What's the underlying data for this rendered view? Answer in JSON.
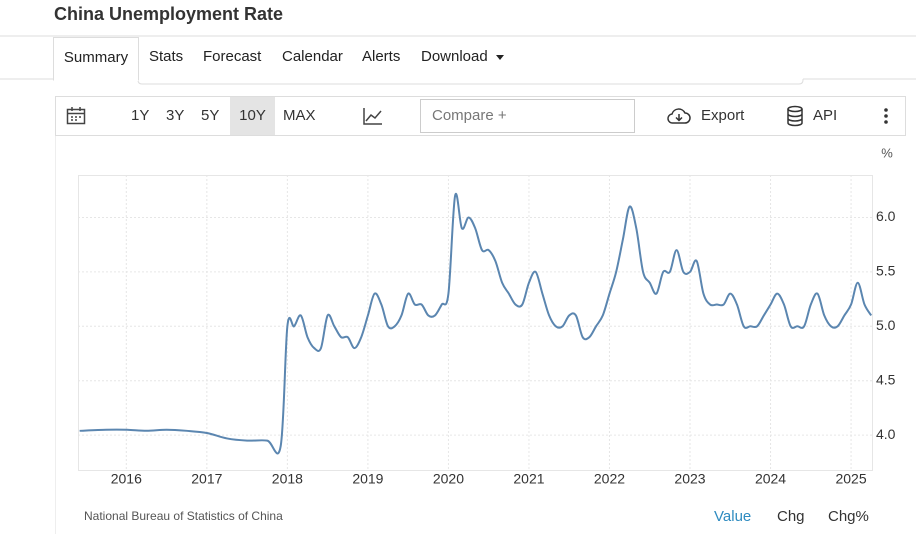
{
  "header": {
    "title": "China Unemployment Rate"
  },
  "tabs": [
    "Summary",
    "Stats",
    "Forecast",
    "Calendar",
    "Alerts",
    "Download"
  ],
  "toolbar": {
    "ranges": [
      "1Y",
      "3Y",
      "5Y",
      "10Y",
      "MAX"
    ],
    "compare": "Compare +",
    "export": "Export",
    "api": "API"
  },
  "chart_data": {
    "type": "line",
    "unit": "%",
    "color": "#5b86b0",
    "grid": true,
    "x": [
      2015.42,
      2015.75,
      2016.0,
      2016.25,
      2016.5,
      2016.75,
      2017.0,
      2017.25,
      2017.5,
      2017.75,
      2017.917,
      2018,
      2018.083,
      2018.167,
      2018.25,
      2018.333,
      2018.417,
      2018.5,
      2018.583,
      2018.667,
      2018.75,
      2018.833,
      2018.917,
      2019,
      2019.083,
      2019.167,
      2019.25,
      2019.333,
      2019.417,
      2019.5,
      2019.583,
      2019.667,
      2019.75,
      2019.833,
      2019.917,
      2020,
      2020.083,
      2020.167,
      2020.25,
      2020.333,
      2020.417,
      2020.5,
      2020.583,
      2020.667,
      2020.75,
      2020.833,
      2020.917,
      2021,
      2021.083,
      2021.167,
      2021.25,
      2021.333,
      2021.417,
      2021.5,
      2021.583,
      2021.667,
      2021.75,
      2021.833,
      2021.917,
      2022,
      2022.083,
      2022.167,
      2022.25,
      2022.333,
      2022.417,
      2022.5,
      2022.583,
      2022.667,
      2022.75,
      2022.833,
      2022.917,
      2023,
      2023.083,
      2023.167,
      2023.25,
      2023.333,
      2023.417,
      2023.5,
      2023.583,
      2023.667,
      2023.75,
      2023.833,
      2023.917,
      2024,
      2024.083,
      2024.167,
      2024.25,
      2024.333,
      2024.417,
      2024.5,
      2024.583,
      2024.667,
      2024.75,
      2024.833,
      2024.917,
      2025,
      2025.083,
      2025.167,
      2025.25
    ],
    "values": [
      4.04,
      4.05,
      4.05,
      4.04,
      4.05,
      4.04,
      4.02,
      3.97,
      3.95,
      3.95,
      3.9,
      5.0,
      5.0,
      5.1,
      4.9,
      4.8,
      4.8,
      5.1,
      5.0,
      4.9,
      4.9,
      4.8,
      4.9,
      5.1,
      5.3,
      5.2,
      5.0,
      5.0,
      5.1,
      5.3,
      5.2,
      5.2,
      5.1,
      5.1,
      5.2,
      5.3,
      6.2,
      5.9,
      6.0,
      5.9,
      5.7,
      5.7,
      5.6,
      5.4,
      5.3,
      5.2,
      5.2,
      5.4,
      5.5,
      5.3,
      5.1,
      5.0,
      5.0,
      5.1,
      5.1,
      4.9,
      4.9,
      5.0,
      5.1,
      5.3,
      5.5,
      5.8,
      6.1,
      5.9,
      5.5,
      5.4,
      5.3,
      5.5,
      5.5,
      5.7,
      5.5,
      5.5,
      5.6,
      5.3,
      5.2,
      5.2,
      5.2,
      5.3,
      5.2,
      5.0,
      5.0,
      5.0,
      5.1,
      5.2,
      5.3,
      5.2,
      5.0,
      5.0,
      5.0,
      5.2,
      5.3,
      5.1,
      5.0,
      5.0,
      5.1,
      5.2,
      5.4,
      5.2,
      5.1
    ],
    "xlim": [
      2015.4,
      2025.26
    ],
    "xticks": [
      2016,
      2017,
      2018,
      2019,
      2020,
      2021,
      2022,
      2023,
      2024,
      2025
    ],
    "ylim": [
      3.68,
      6.39
    ],
    "yticks": [
      {
        "value": 4,
        "label": "4.0"
      },
      4.5,
      {
        "value": 5,
        "label": "5.0"
      },
      5.5,
      {
        "value": 6,
        "label": "6.0"
      }
    ]
  },
  "source": "National Bureau of Statistics of China",
  "footer_tabs": [
    "Value",
    "Chg",
    "Chg%"
  ]
}
